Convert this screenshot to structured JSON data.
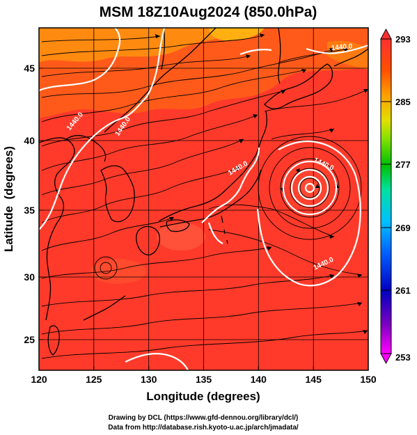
{
  "title": "MSM 18Z10Aug2024 (850.0hPa)",
  "axes": {
    "xlabel": "Longitude (degrees)",
    "ylabel": "Latitude  (degrees)",
    "xticks": [
      "120",
      "125",
      "130",
      "135",
      "140",
      "145",
      "150"
    ],
    "yticks": [
      "25",
      "30",
      "35",
      "40",
      "45"
    ],
    "xlim": [
      120,
      150
    ],
    "ylim": [
      22.4,
      47.6
    ]
  },
  "colorbar": {
    "labels": [
      "293",
      "285",
      "277",
      "269",
      "261",
      "253"
    ],
    "range": [
      253,
      293
    ],
    "colors": [
      "#ff00ff",
      "#8000c0",
      "#0000c0",
      "#0050ff",
      "#00c0ff",
      "#00e0a0",
      "#00c000",
      "#80e000",
      "#e0e000",
      "#ffa000",
      "#ff5000",
      "#ff3030"
    ]
  },
  "contours": {
    "label": "1440.0",
    "low_center": {
      "lon": 144.8,
      "lat": 36.7
    }
  },
  "credits": {
    "line1": "Drawing by DCL (https://www.gfd-dennou.org/library/dcl/)",
    "line2": "Data from http://database.rish.kyoto-u.ac.jp/arch/jmadata/"
  },
  "colors": {
    "field_main": "#ff3a2a",
    "field_warm": "#ff5a1a",
    "field_orange": "#ff9a10",
    "land_outline": "#000000",
    "contour": "#ffffff"
  }
}
